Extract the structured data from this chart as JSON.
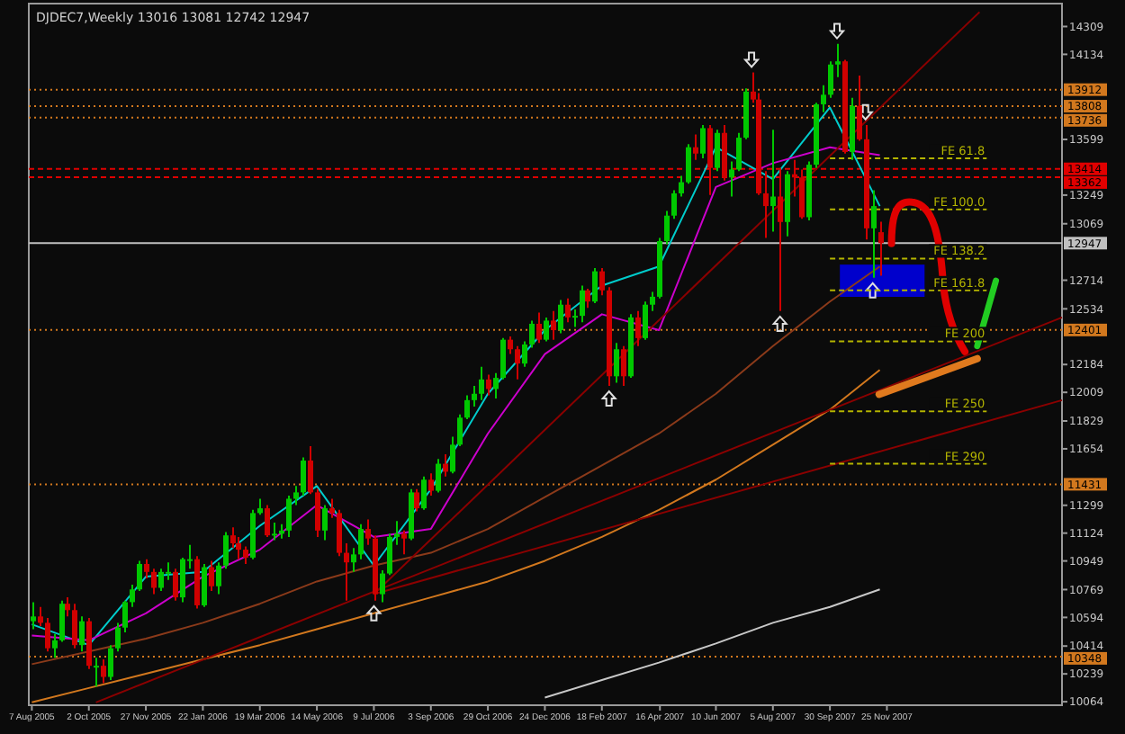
{
  "chart_data": {
    "type": "candlestick",
    "title": "DJDEC7,Weekly  13016 13081 12742 12947",
    "colors": [
      "#00c800",
      "#d00000",
      "#d00000",
      "#00c800",
      "#00c800",
      "#d00000",
      "#d00000",
      "#00c800",
      "#d00000",
      "#00c800",
      "#d00000",
      "#00c800",
      "#00c800",
      "#00c800",
      "#00c800",
      "#00c800",
      "#d00000",
      "#d00000",
      "#00c800",
      "#00c800",
      "#d00000",
      "#00c800",
      "#00c800",
      "#d00000",
      "#00c800",
      "#d00000",
      "#00c800",
      "#00c800",
      "#d00000",
      "#d00000",
      "#d00000",
      "#00c800",
      "#00c800",
      "#d00000",
      "#00c800",
      "#00c800",
      "#00c800",
      "#00c800",
      "#00c800",
      "#d00000",
      "#d00000",
      "#00c800",
      "#d00000",
      "#d00000",
      "#d00000",
      "#00c800",
      "#00c800",
      "#d00000",
      "#d00000",
      "#00c800",
      "#00c800",
      "#00c800",
      "#d00000",
      "#00c800",
      "#d00000",
      "#00c800",
      "#d00000",
      "#00c800",
      "#d00000",
      "#00c800",
      "#00c800",
      "#00c800",
      "#00c800",
      "#00c800",
      "#d00000",
      "#00c800",
      "#00c800",
      "#d00000",
      "#d00000",
      "#00c800",
      "#00c800",
      "#d00000",
      "#00c800",
      "#d00000",
      "#00c800",
      "#d00000",
      "#00c800",
      "#00c800",
      "#d00000",
      "#00c800",
      "#d00000",
      "#d00000",
      "#00c800",
      "#d00000",
      "#00c800",
      "#d00000",
      "#00c800",
      "#00c800",
      "#00c800",
      "#00c800",
      "#00c800",
      "#00c800",
      "#00c800",
      "#d00000",
      "#00c800",
      "#d00000",
      "#00c800",
      "#d00000",
      "#00c800",
      "#00c800",
      "#00c800",
      "#d00000",
      "#d00000",
      "#d00000",
      "#00c800",
      "#d00000",
      "#00c800",
      "#d00000",
      "#d00000",
      "#00c800",
      "#00c800",
      "#00c800",
      "#00c800",
      "#00c800",
      "#d00000",
      "#00c800",
      "#d00000",
      "#d00000",
      "#00c800",
      "#d00000"
    ],
    "x": [
      "2005-08-07",
      "2005-08-14",
      "2005-08-21",
      "2005-08-28",
      "2005-09-04",
      "2005-09-11",
      "2005-09-18",
      "2005-09-25",
      "2005-10-02",
      "2005-10-09",
      "2005-10-16",
      "2005-10-23",
      "2005-10-30",
      "2005-11-06",
      "2005-11-13",
      "2005-11-20",
      "2005-11-27",
      "2005-12-04",
      "2005-12-11",
      "2005-12-18",
      "2005-12-25",
      "2006-01-01",
      "2006-01-08",
      "2006-01-15",
      "2006-01-22",
      "2006-01-29",
      "2006-02-05",
      "2006-02-12",
      "2006-02-19",
      "2006-02-26",
      "2006-03-05",
      "2006-03-12",
      "2006-03-19",
      "2006-03-26",
      "2006-04-02",
      "2006-04-09",
      "2006-04-16",
      "2006-04-23",
      "2006-04-30",
      "2006-05-07",
      "2006-05-14",
      "2006-05-21",
      "2006-05-28",
      "2006-06-04",
      "2006-06-11",
      "2006-06-18",
      "2006-06-25",
      "2006-07-02",
      "2006-07-09",
      "2006-07-16",
      "2006-07-23",
      "2006-07-30",
      "2006-08-06",
      "2006-08-13",
      "2006-08-20",
      "2006-08-27",
      "2006-09-03",
      "2006-09-10",
      "2006-09-17",
      "2006-09-24",
      "2006-10-01",
      "2006-10-08",
      "2006-10-15",
      "2006-10-22",
      "2006-10-29",
      "2006-11-05",
      "2006-11-12",
      "2006-11-19",
      "2006-11-26",
      "2006-12-03",
      "2006-12-10",
      "2006-12-17",
      "2006-12-24",
      "2006-12-31",
      "2007-01-07",
      "2007-01-14",
      "2007-01-21",
      "2007-01-28",
      "2007-02-04",
      "2007-02-11",
      "2007-02-18",
      "2007-02-25",
      "2007-03-04",
      "2007-03-11",
      "2007-03-18",
      "2007-03-25",
      "2007-04-01",
      "2007-04-08",
      "2007-04-15",
      "2007-04-22",
      "2007-04-29",
      "2007-05-06",
      "2007-05-13",
      "2007-05-20",
      "2007-05-27",
      "2007-06-03",
      "2007-06-10",
      "2007-06-17",
      "2007-06-24",
      "2007-07-01",
      "2007-07-08",
      "2007-07-15",
      "2007-07-22",
      "2007-07-29",
      "2007-08-05",
      "2007-08-12",
      "2007-08-19",
      "2007-08-26",
      "2007-09-02",
      "2007-09-09",
      "2007-09-16",
      "2007-09-23",
      "2007-09-30",
      "2007-10-07",
      "2007-10-14",
      "2007-10-21",
      "2007-10-28",
      "2007-11-04",
      "2007-11-11",
      "2007-11-18"
    ],
    "ohlc": [
      [
        10570,
        10690,
        10520,
        10600
      ],
      [
        10600,
        10660,
        10540,
        10560
      ],
      [
        10560,
        10590,
        10380,
        10400
      ],
      [
        10400,
        10490,
        10340,
        10450
      ],
      [
        10450,
        10700,
        10440,
        10680
      ],
      [
        10680,
        10720,
        10600,
        10640
      ],
      [
        10640,
        10680,
        10400,
        10420
      ],
      [
        10420,
        10600,
        10380,
        10570
      ],
      [
        10570,
        10590,
        10270,
        10290
      ],
      [
        10290,
        10340,
        10160,
        10290
      ],
      [
        10290,
        10330,
        10180,
        10220
      ],
      [
        10220,
        10420,
        10200,
        10400
      ],
      [
        10400,
        10560,
        10380,
        10530
      ],
      [
        10530,
        10700,
        10500,
        10690
      ],
      [
        10690,
        10800,
        10660,
        10770
      ],
      [
        10770,
        10950,
        10760,
        10930
      ],
      [
        10930,
        10960,
        10840,
        10880
      ],
      [
        10880,
        10900,
        10740,
        10780
      ],
      [
        10780,
        10900,
        10760,
        10880
      ],
      [
        10880,
        10940,
        10830,
        10880
      ],
      [
        10880,
        10900,
        10700,
        10720
      ],
      [
        10720,
        10970,
        10690,
        10960
      ],
      [
        10960,
        11050,
        10900,
        10960
      ],
      [
        10960,
        10980,
        10650,
        10670
      ],
      [
        10670,
        10930,
        10660,
        10910
      ],
      [
        10910,
        10950,
        10760,
        10790
      ],
      [
        10790,
        10940,
        10740,
        10920
      ],
      [
        10920,
        11130,
        10900,
        11110
      ],
      [
        11110,
        11160,
        11030,
        11060
      ],
      [
        11060,
        11100,
        10960,
        11020
      ],
      [
        11020,
        11040,
        10930,
        10970
      ],
      [
        10970,
        11270,
        10960,
        11250
      ],
      [
        11250,
        11340,
        11240,
        11280
      ],
      [
        11280,
        11300,
        11100,
        11110
      ],
      [
        11110,
        11190,
        11080,
        11120
      ],
      [
        11120,
        11180,
        11090,
        11140
      ],
      [
        11140,
        11360,
        11100,
        11340
      ],
      [
        11340,
        11420,
        11300,
        11380
      ],
      [
        11380,
        11600,
        11360,
        11580
      ],
      [
        11580,
        11670,
        11370,
        11380
      ],
      [
        11380,
        11400,
        11100,
        11140
      ],
      [
        11140,
        11300,
        11080,
        11280
      ],
      [
        11280,
        11340,
        11220,
        11250
      ],
      [
        11250,
        11270,
        10980,
        11000
      ],
      [
        11000,
        11060,
        10700,
        10940
      ],
      [
        10940,
        11030,
        10880,
        10990
      ],
      [
        10990,
        11180,
        10960,
        11150
      ],
      [
        11150,
        11210,
        11050,
        11090
      ],
      [
        11090,
        11110,
        10700,
        10740
      ],
      [
        10740,
        10890,
        10690,
        10870
      ],
      [
        10870,
        11120,
        10860,
        11100
      ],
      [
        11100,
        11200,
        11050,
        11120
      ],
      [
        11120,
        11140,
        10990,
        11090
      ],
      [
        11090,
        11400,
        11080,
        11380
      ],
      [
        11380,
        11400,
        11260,
        11280
      ],
      [
        11280,
        11480,
        11270,
        11460
      ],
      [
        11460,
        11500,
        11360,
        11390
      ],
      [
        11390,
        11590,
        11380,
        11560
      ],
      [
        11560,
        11620,
        11480,
        11510
      ],
      [
        11510,
        11730,
        11500,
        11680
      ],
      [
        11680,
        11870,
        11670,
        11850
      ],
      [
        11850,
        11990,
        11840,
        11960
      ],
      [
        11960,
        12050,
        11920,
        12000
      ],
      [
        12000,
        12170,
        11960,
        12090
      ],
      [
        12090,
        12120,
        11990,
        12030
      ],
      [
        12030,
        12130,
        11970,
        12100
      ],
      [
        12100,
        12350,
        12090,
        12340
      ],
      [
        12340,
        12360,
        12250,
        12280
      ],
      [
        12280,
        12300,
        12090,
        12190
      ],
      [
        12190,
        12330,
        12170,
        12310
      ],
      [
        12310,
        12460,
        12290,
        12440
      ],
      [
        12440,
        12510,
        12320,
        12340
      ],
      [
        12340,
        12480,
        12330,
        12460
      ],
      [
        12460,
        12520,
        12340,
        12400
      ],
      [
        12400,
        12590,
        12380,
        12560
      ],
      [
        12560,
        12600,
        12450,
        12480
      ],
      [
        12480,
        12530,
        12420,
        12490
      ],
      [
        12490,
        12680,
        12450,
        12650
      ],
      [
        12650,
        12660,
        12540,
        12580
      ],
      [
        12580,
        12790,
        12570,
        12770
      ],
      [
        12770,
        12790,
        12620,
        12650
      ],
      [
        12650,
        12670,
        12050,
        12110
      ],
      [
        12110,
        12320,
        12070,
        12280
      ],
      [
        12280,
        12300,
        12050,
        12110
      ],
      [
        12110,
        12500,
        12100,
        12480
      ],
      [
        12480,
        12520,
        12300,
        12350
      ],
      [
        12350,
        12580,
        12340,
        12560
      ],
      [
        12560,
        12640,
        12520,
        12610
      ],
      [
        12610,
        12980,
        12600,
        12960
      ],
      [
        12960,
        13150,
        12940,
        13120
      ],
      [
        13120,
        13280,
        13100,
        13260
      ],
      [
        13260,
        13370,
        13240,
        13330
      ],
      [
        13330,
        13570,
        13320,
        13550
      ],
      [
        13550,
        13630,
        13470,
        13510
      ],
      [
        13510,
        13690,
        13480,
        13670
      ],
      [
        13670,
        13690,
        13250,
        13420
      ],
      [
        13420,
        13660,
        13400,
        13640
      ],
      [
        13640,
        13690,
        13340,
        13360
      ],
      [
        13360,
        13460,
        13240,
        13410
      ],
      [
        13410,
        13640,
        13400,
        13610
      ],
      [
        13610,
        13920,
        13600,
        13900
      ],
      [
        13900,
        14020,
        13830,
        13850
      ],
      [
        13850,
        13890,
        13250,
        13260
      ],
      [
        13260,
        13400,
        12980,
        13180
      ],
      [
        13180,
        13660,
        13020,
        13240
      ],
      [
        13240,
        13420,
        12520,
        13080
      ],
      [
        13080,
        13400,
        12990,
        13380
      ],
      [
        13380,
        13470,
        13240,
        13360
      ],
      [
        13360,
        13410,
        13100,
        13110
      ],
      [
        13110,
        13460,
        13090,
        13440
      ],
      [
        13440,
        13830,
        13420,
        13820
      ],
      [
        13820,
        13940,
        13770,
        13880
      ],
      [
        13880,
        14090,
        13860,
        14070
      ],
      [
        14070,
        14200,
        13990,
        14090
      ],
      [
        14090,
        14100,
        13510,
        13520
      ],
      [
        13520,
        13860,
        13470,
        13810
      ],
      [
        13810,
        14000,
        13590,
        13600
      ],
      [
        13600,
        13690,
        12970,
        13040
      ],
      [
        13040,
        13280,
        12730,
        13180
      ],
      [
        13016,
        13081,
        12742,
        12947
      ]
    ],
    "series": [
      {
        "type": "line",
        "color": "#00cccc",
        "x": [
          "2005-08-07",
          "2005-10-02",
          "2005-11-27",
          "2006-01-22",
          "2006-03-19",
          "2006-05-14",
          "2006-07-09",
          "2006-09-03",
          "2006-10-29",
          "2006-12-24",
          "2007-02-18",
          "2007-04-15",
          "2007-06-10",
          "2007-08-05",
          "2007-09-30",
          "2007-11-18"
        ],
        "values": [
          10550,
          10420,
          10850,
          10880,
          11170,
          11420,
          10920,
          11400,
          12000,
          12400,
          12680,
          12800,
          13550,
          13350,
          13800,
          13180
        ]
      },
      {
        "type": "line",
        "color": "#cc00cc",
        "x": [
          "2005-08-07",
          "2005-10-02",
          "2005-11-27",
          "2006-01-22",
          "2006-03-19",
          "2006-05-14",
          "2006-07-09",
          "2006-09-03",
          "2006-10-29",
          "2006-12-24",
          "2007-02-18",
          "2007-04-15",
          "2007-06-10",
          "2007-08-05",
          "2007-09-30",
          "2007-11-18"
        ],
        "values": [
          10480,
          10450,
          10620,
          10850,
          11020,
          11300,
          11100,
          11150,
          11750,
          12250,
          12500,
          12400,
          13300,
          13450,
          13550,
          13500
        ]
      },
      {
        "type": "line",
        "color": "#8b3a1a",
        "x": [
          "2005-08-07",
          "2005-10-02",
          "2005-11-27",
          "2006-01-22",
          "2006-03-19",
          "2006-05-14",
          "2006-07-09",
          "2006-09-03",
          "2006-10-29",
          "2006-12-24",
          "2007-02-18",
          "2007-04-15",
          "2007-06-10",
          "2007-08-05",
          "2007-09-30",
          "2007-11-18"
        ],
        "values": [
          10300,
          10380,
          10460,
          10560,
          10680,
          10820,
          10920,
          11000,
          11150,
          11350,
          11550,
          11750,
          12000,
          12300,
          12580,
          12800
        ]
      },
      {
        "type": "line",
        "color": "#d2781e",
        "x": [
          "2005-08-07",
          "2005-10-02",
          "2005-11-27",
          "2006-01-22",
          "2006-03-19",
          "2006-05-14",
          "2006-07-09",
          "2006-09-03",
          "2006-10-29",
          "2006-12-24",
          "2007-02-18",
          "2007-04-15",
          "2007-06-10",
          "2007-08-05",
          "2007-09-30",
          "2007-11-18"
        ],
        "values": [
          10060,
          10150,
          10240,
          10330,
          10420,
          10520,
          10620,
          10720,
          10820,
          10950,
          11100,
          11270,
          11460,
          11680,
          11900,
          12150
        ]
      },
      {
        "type": "line",
        "color": "#c8c8c8",
        "x": [
          "2006-12-24",
          "2007-02-18",
          "2007-04-15",
          "2007-06-10",
          "2007-08-05",
          "2007-09-30",
          "2007-11-18"
        ],
        "values": [
          10090,
          10200,
          10310,
          10430,
          10560,
          10660,
          10770
        ]
      },
      {
        "type": "line",
        "color": "#8b0000",
        "x": [
          "2006-07-09",
          "2008-02-24"
        ],
        "values": [
          10740,
          14400
        ]
      },
      {
        "type": "line",
        "color": "#8b0000",
        "x": [
          "2005-10-09",
          "2008-05-15"
        ],
        "values": [
          10060,
          12480
        ]
      },
      {
        "type": "line",
        "color": "#8b0000",
        "x": [
          "2006-07-09",
          "2008-05-15"
        ],
        "values": [
          10740,
          11960
        ]
      },
      {
        "type": "scatter",
        "color": "#e0e0e0",
        "x": [
          "2006-07-09",
          "2007-02-25",
          "2007-08-12",
          "2007-11-11"
        ],
        "values": [
          10620,
          11970,
          12440,
          12650
        ]
      },
      {
        "type": "scatter",
        "color": "#e0e0e0",
        "x": [
          "2007-07-15",
          "2007-10-07",
          "2007-11-04"
        ],
        "values": [
          14100,
          14280,
          13770
        ]
      },
      {
        "type": "line",
        "name": "FE 61.8",
        "color": "#b4b400",
        "line_style": "dashed",
        "x": [
          "2007-09-30",
          "2008-03-02"
        ],
        "values": [
          13480,
          13480
        ]
      },
      {
        "type": "line",
        "name": "FE 100.0",
        "color": "#b4b400",
        "line_style": "dashed",
        "x": [
          "2007-09-30",
          "2008-03-02"
        ],
        "values": [
          13160,
          13160
        ]
      },
      {
        "type": "line",
        "name": "FE 138.2",
        "color": "#b4b400",
        "line_style": "dashed",
        "x": [
          "2007-09-30",
          "2008-03-02"
        ],
        "values": [
          12850,
          12850
        ]
      },
      {
        "type": "line",
        "name": "FE 161.8",
        "color": "#b4b400",
        "line_style": "dashed",
        "x": [
          "2007-09-30",
          "2008-03-02"
        ],
        "values": [
          12650,
          12650
        ]
      },
      {
        "type": "line",
        "name": "FE 200",
        "color": "#b4b400",
        "line_style": "dashed",
        "x": [
          "2007-09-30",
          "2008-03-02"
        ],
        "values": [
          12330,
          12330
        ]
      },
      {
        "type": "line",
        "name": "FE 250",
        "color": "#b4b400",
        "line_style": "dashed",
        "x": [
          "2007-09-30",
          "2008-03-02"
        ],
        "values": [
          11890,
          11890
        ]
      },
      {
        "type": "line",
        "name": "FE 290",
        "color": "#b4b400",
        "line_style": "dashed",
        "x": [
          "2007-09-30",
          "2008-03-02"
        ],
        "values": [
          11560,
          11560
        ]
      }
    ],
    "xlim": [
      "2005-08-04",
      "2008-05-15"
    ],
    "xticks": [
      {
        "value": "2005-08-07",
        "label": "7 Aug 2005"
      },
      {
        "value": "2005-10-02",
        "label": "2 Oct 2005"
      },
      {
        "value": "2005-11-27",
        "label": "27 Nov 2005"
      },
      {
        "value": "2006-01-22",
        "label": "22 Jan 2006"
      },
      {
        "value": "2006-03-19",
        "label": "19 Mar 2006"
      },
      {
        "value": "2006-05-14",
        "label": "14 May 2006"
      },
      {
        "value": "2006-07-09",
        "label": "9 Jul 2006"
      },
      {
        "value": "2006-09-03",
        "label": "3 Sep 2006"
      },
      {
        "value": "2006-10-29",
        "label": "29 Oct 2006"
      },
      {
        "value": "2006-12-24",
        "label": "24 Dec 2006"
      },
      {
        "value": "2007-02-18",
        "label": "18 Feb 2007"
      },
      {
        "value": "2007-04-16",
        "label": "16 Apr 2007"
      },
      {
        "value": "2007-06-10",
        "label": "10 Jun 2007"
      },
      {
        "value": "2007-08-05",
        "label": "5 Aug 2007"
      },
      {
        "value": "2007-09-30",
        "label": "30 Sep 2007"
      },
      {
        "value": "2007-11-25",
        "label": "25 Nov 2007"
      }
    ],
    "ylim": [
      10042,
      14453
    ],
    "yticks": [
      14309,
      14134,
      13599,
      13249,
      13069,
      12714,
      12534,
      12184,
      12009,
      11829,
      11654,
      11299,
      11124,
      10949,
      10769,
      10594,
      10414,
      10239,
      10064
    ],
    "ref_lines": [
      {
        "axis": "y",
        "value": 13912,
        "label": "13912",
        "color": "#d2781e",
        "line_style": "dotted"
      },
      {
        "axis": "y",
        "value": 13808,
        "label": "13808",
        "color": "#d2781e",
        "line_style": "dotted"
      },
      {
        "axis": "y",
        "value": 13736,
        "label": "13736",
        "color": "#d2781e",
        "line_style": "dotted"
      },
      {
        "axis": "y",
        "value": 13414,
        "label": "13414",
        "color": "#e00000",
        "line_style": "dashed"
      },
      {
        "axis": "y",
        "value": 13362,
        "label": "13362",
        "color": "#e00000",
        "line_style": "dashed"
      },
      {
        "axis": "y",
        "value": 12947,
        "label": "12947",
        "color": "#c0c0c0",
        "line_style": "solid"
      },
      {
        "axis": "y",
        "value": 12401,
        "label": "12401",
        "color": "#d2781e",
        "line_style": "dotted"
      },
      {
        "axis": "y",
        "value": 11431,
        "label": "11431",
        "color": "#d2781e",
        "line_style": "dotted"
      },
      {
        "axis": "y",
        "value": 10348,
        "label": "10348",
        "color": "#d2781e",
        "line_style": "dotted"
      }
    ]
  }
}
